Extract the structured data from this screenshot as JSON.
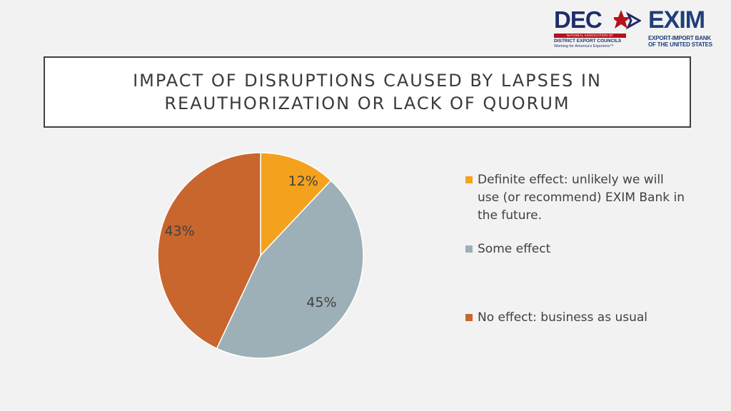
{
  "logos": {
    "dec": {
      "wordmark": "DEC",
      "band_text": "NATIONAL ASSOCIATION OF",
      "line2": "DISTRICT EXPORT COUNCILS",
      "line3": "Working for America's Exporters™",
      "colors": {
        "navy": "#1f2d6b",
        "red": "#b5121b"
      }
    },
    "exim": {
      "wordmark": "EXIM",
      "line1": "EXPORT-IMPORT BANK",
      "line2": "OF THE UNITED STATES",
      "color": "#1f3f7a"
    }
  },
  "title": {
    "line1": "IMPACT OF DISRUPTIONS CAUSED BY LAPSES IN",
    "line2": "REAUTHORIZATION OR LACK OF QUORUM"
  },
  "chart_data": {
    "type": "pie",
    "slices": [
      {
        "label": "Definite effect: unlikely we will use (or recommend) EXIM Bank in the future.",
        "value": 12,
        "display": "12%",
        "color": "#f4a21e"
      },
      {
        "label": "Some effect",
        "value": 45,
        "display": "45%",
        "color": "#9eb0b7"
      },
      {
        "label": "No effect: business as usual",
        "value": 43,
        "display": "43%",
        "color": "#c8662d"
      }
    ],
    "start_angle": "12 o'clock",
    "direction": "clockwise",
    "legend_position": "right"
  }
}
